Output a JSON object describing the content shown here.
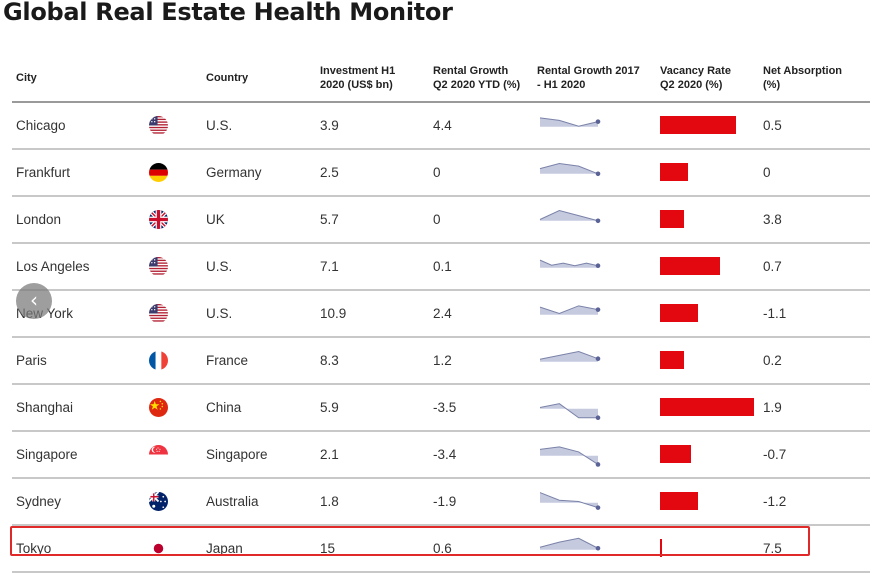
{
  "title": "Global Real Estate Health Monitor",
  "headers": {
    "city": "City",
    "country": "Country",
    "investment": "Investment H1\n2020 (US$ bn)",
    "rental_growth": "Rental Growth\nQ2 2020 YTD (%)",
    "trend": "Rental Growth 2017\n- H1 2020",
    "vacancy": "Vacancy Rate\nQ2 2020 (%)",
    "absorption": "Net Absorption\n(%)"
  },
  "colors": {
    "vacancy_bar": "#e3070f",
    "sparkline_fill": "#c5cadf",
    "sparkline_line": "#7a82a8",
    "highlight_border": "#e02a2a"
  },
  "navigation": {
    "prev_icon": "chevron-left-icon",
    "prev_glyph": "‹"
  },
  "chart_data": {
    "type": "table",
    "title": "Global Real Estate Health Monitor",
    "columns": [
      "City",
      "Country",
      "Investment H1 2020 (US$ bn)",
      "Rental Growth Q2 2020 YTD (%)",
      "Rental Growth 2017 - H1 2020",
      "Vacancy Rate Q2 2020 (%)",
      "Net Absorption (%)"
    ],
    "vacancy_scale_max": 20,
    "highlighted_city": "Tokyo",
    "rows": [
      {
        "city": "Chicago",
        "country": "U.S.",
        "flag": "us-flag-icon",
        "investment": "3.9",
        "rental_growth": "4.4",
        "trend": [
          3.5,
          2.5,
          0.2,
          2.0
        ],
        "vacancy": 16.1,
        "absorption": "0.5"
      },
      {
        "city": "Frankfurt",
        "country": "Germany",
        "flag": "germany-flag-icon",
        "investment": "2.5",
        "rental_growth": "0",
        "trend": [
          2.0,
          4.0,
          3.0,
          0.0
        ],
        "vacancy": 6.0,
        "absorption": "0"
      },
      {
        "city": "London",
        "country": "UK",
        "flag": "uk-flag-icon",
        "investment": "5.7",
        "rental_growth": "0",
        "trend": [
          0.5,
          4.0,
          2.0,
          0.0
        ],
        "vacancy": 5.2,
        "absorption": "3.8"
      },
      {
        "city": "Los Angeles",
        "country": "U.S.",
        "flag": "us-flag-icon",
        "investment": "7.1",
        "rental_growth": "0.1",
        "trend": [
          3.0,
          1.0,
          1.8,
          0.8,
          1.8,
          0.8
        ],
        "vacancy": 12.7,
        "absorption": "0.7"
      },
      {
        "city": "New York",
        "country": "U.S.",
        "flag": "us-flag-icon",
        "investment": "10.9",
        "rental_growth": "2.4",
        "trend": [
          3.0,
          0.5,
          3.5,
          2.0
        ],
        "vacancy": 8.0,
        "absorption": "-1.1"
      },
      {
        "city": "Paris",
        "country": "France",
        "flag": "france-flag-icon",
        "investment": "8.3",
        "rental_growth": "1.2",
        "trend": [
          1.0,
          2.5,
          4.0,
          1.2
        ],
        "vacancy": 5.2,
        "absorption": "0.2"
      },
      {
        "city": "Shanghai",
        "country": "China",
        "flag": "china-flag-icon",
        "investment": "5.9",
        "rental_growth": "-3.5",
        "trend": [
          0.5,
          2.0,
          -3.5,
          -3.5
        ],
        "vacancy": 20.0,
        "absorption": "1.9"
      },
      {
        "city": "Singapore",
        "country": "Singapore",
        "flag": "singapore-flag-icon",
        "investment": "2.1",
        "rental_growth": "-3.4",
        "trend": [
          2.5,
          3.5,
          1.5,
          -3.4
        ],
        "vacancy": 6.5,
        "absorption": "-0.7"
      },
      {
        "city": "Sydney",
        "country": "Australia",
        "flag": "australia-flag-icon",
        "investment": "1.8",
        "rental_growth": "-1.9",
        "trend": [
          4.0,
          1.0,
          0.5,
          -1.9
        ],
        "vacancy": 8.1,
        "absorption": "-1.2"
      },
      {
        "city": "Tokyo",
        "country": "Japan",
        "flag": "japan-flag-icon",
        "investment": "15",
        "rental_growth": "0.6",
        "trend": [
          1.0,
          3.0,
          4.5,
          0.6
        ],
        "vacancy": 0.5,
        "absorption": "7.5"
      }
    ]
  }
}
